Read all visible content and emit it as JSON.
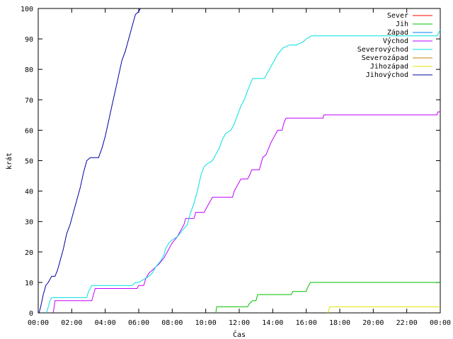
{
  "chart_data": {
    "type": "line",
    "xlabel": "Čas",
    "ylabel": "krát",
    "xlim": [
      0,
      24
    ],
    "ylim": [
      0,
      100
    ],
    "grid": false,
    "legend_position": "top-right",
    "x_ticks": [
      {
        "value": 0,
        "label": "00:00"
      },
      {
        "value": 2,
        "label": "02:00"
      },
      {
        "value": 4,
        "label": "04:00"
      },
      {
        "value": 6,
        "label": "06:00"
      },
      {
        "value": 8,
        "label": "08:00"
      },
      {
        "value": 10,
        "label": "10:00"
      },
      {
        "value": 12,
        "label": "12:00"
      },
      {
        "value": 14,
        "label": "14:00"
      },
      {
        "value": 16,
        "label": "16:00"
      },
      {
        "value": 18,
        "label": "18:00"
      },
      {
        "value": 20,
        "label": "20:00"
      },
      {
        "value": 22,
        "label": "22:00"
      },
      {
        "value": 24,
        "label": "00:00"
      }
    ],
    "y_ticks": [
      {
        "value": 0,
        "label": "0"
      },
      {
        "value": 10,
        "label": "10"
      },
      {
        "value": 20,
        "label": "20"
      },
      {
        "value": 30,
        "label": "30"
      },
      {
        "value": 40,
        "label": "40"
      },
      {
        "value": 50,
        "label": "50"
      },
      {
        "value": 60,
        "label": "60"
      },
      {
        "value": 70,
        "label": "70"
      },
      {
        "value": 80,
        "label": "80"
      },
      {
        "value": 90,
        "label": "90"
      },
      {
        "value": 100,
        "label": "100"
      }
    ],
    "series": [
      {
        "name": "Sever",
        "color": "#ff0000",
        "points": []
      },
      {
        "name": "Jih",
        "color": "#00c000",
        "points": [
          [
            10.6,
            0
          ],
          [
            10.65,
            2
          ],
          [
            12.5,
            2
          ],
          [
            12.6,
            3
          ],
          [
            12.8,
            4
          ],
          [
            13.0,
            4
          ],
          [
            13.1,
            6
          ],
          [
            15.1,
            6
          ],
          [
            15.2,
            7
          ],
          [
            16.0,
            7
          ],
          [
            16.05,
            8
          ],
          [
            16.15,
            9
          ],
          [
            16.25,
            10
          ],
          [
            24,
            10
          ]
        ]
      },
      {
        "name": "Západ",
        "color": "#0080ff",
        "points": []
      },
      {
        "name": "Východ",
        "color": "#c000ff",
        "points": [
          [
            0.9,
            0
          ],
          [
            1.0,
            4
          ],
          [
            3.2,
            4
          ],
          [
            3.4,
            8
          ],
          [
            5.9,
            8
          ],
          [
            6.0,
            9
          ],
          [
            6.3,
            9
          ],
          [
            6.4,
            11
          ],
          [
            6.6,
            13
          ],
          [
            6.8,
            14
          ],
          [
            7.0,
            15
          ],
          [
            7.2,
            16
          ],
          [
            7.35,
            17
          ],
          [
            7.5,
            18
          ],
          [
            7.8,
            21
          ],
          [
            8.0,
            23
          ],
          [
            8.15,
            24
          ],
          [
            8.3,
            25
          ],
          [
            8.5,
            27
          ],
          [
            8.7,
            29
          ],
          [
            8.8,
            31
          ],
          [
            9.3,
            31
          ],
          [
            9.4,
            33
          ],
          [
            9.9,
            33
          ],
          [
            10.0,
            34
          ],
          [
            10.1,
            35
          ],
          [
            10.3,
            37
          ],
          [
            10.4,
            38
          ],
          [
            11.6,
            38
          ],
          [
            11.7,
            40
          ],
          [
            11.9,
            42
          ],
          [
            12.1,
            44
          ],
          [
            12.5,
            44
          ],
          [
            12.6,
            45
          ],
          [
            12.75,
            47
          ],
          [
            13.2,
            47
          ],
          [
            13.3,
            49
          ],
          [
            13.4,
            51
          ],
          [
            13.6,
            52
          ],
          [
            13.75,
            54
          ],
          [
            13.9,
            56
          ],
          [
            14.0,
            57
          ],
          [
            14.2,
            59
          ],
          [
            14.3,
            60
          ],
          [
            14.55,
            60
          ],
          [
            14.7,
            63
          ],
          [
            14.8,
            64
          ],
          [
            17.0,
            64
          ],
          [
            17.05,
            65
          ],
          [
            23.8,
            65
          ],
          [
            23.85,
            66
          ],
          [
            24,
            66
          ]
        ]
      },
      {
        "name": "Severovýchod",
        "color": "#00e0e0",
        "points": [
          [
            0.5,
            0
          ],
          [
            0.7,
            4
          ],
          [
            0.8,
            5
          ],
          [
            2.9,
            5
          ],
          [
            3.0,
            7
          ],
          [
            3.1,
            8
          ],
          [
            3.2,
            9
          ],
          [
            5.6,
            9
          ],
          [
            5.8,
            10
          ],
          [
            6.0,
            10
          ],
          [
            6.3,
            11
          ],
          [
            6.6,
            12
          ],
          [
            6.8,
            13
          ],
          [
            7.0,
            15
          ],
          [
            7.3,
            17
          ],
          [
            7.5,
            19
          ],
          [
            7.6,
            21
          ],
          [
            7.8,
            23
          ],
          [
            8.0,
            24
          ],
          [
            8.3,
            25
          ],
          [
            8.6,
            27
          ],
          [
            8.9,
            29
          ],
          [
            9.1,
            33
          ],
          [
            9.3,
            36
          ],
          [
            9.5,
            40
          ],
          [
            9.7,
            45
          ],
          [
            9.9,
            48
          ],
          [
            10.1,
            49
          ],
          [
            10.4,
            50
          ],
          [
            10.6,
            52
          ],
          [
            10.8,
            54
          ],
          [
            11.0,
            57
          ],
          [
            11.2,
            59
          ],
          [
            11.5,
            60
          ],
          [
            11.7,
            62
          ],
          [
            11.9,
            65
          ],
          [
            12.1,
            68
          ],
          [
            12.3,
            70
          ],
          [
            12.5,
            73
          ],
          [
            12.8,
            77
          ],
          [
            13.5,
            77
          ],
          [
            13.7,
            79
          ],
          [
            13.9,
            81
          ],
          [
            14.1,
            83
          ],
          [
            14.3,
            85
          ],
          [
            14.6,
            87
          ],
          [
            15.0,
            88
          ],
          [
            15.4,
            88
          ],
          [
            15.8,
            89
          ],
          [
            16.0,
            90
          ],
          [
            16.3,
            91
          ],
          [
            23.8,
            91
          ],
          [
            24,
            93
          ]
        ]
      },
      {
        "name": "Severozápad",
        "color": "#c08000",
        "points": []
      },
      {
        "name": "Jihozápad",
        "color": "#e0e000",
        "points": [
          [
            17.3,
            0
          ],
          [
            17.4,
            2
          ],
          [
            24,
            2
          ]
        ]
      },
      {
        "name": "Jihovýchod",
        "color": "#0000a0",
        "points": [
          [
            0.05,
            0
          ],
          [
            0.15,
            2
          ],
          [
            0.3,
            6
          ],
          [
            0.45,
            9
          ],
          [
            0.6,
            10
          ],
          [
            0.8,
            12
          ],
          [
            1.0,
            12
          ],
          [
            1.15,
            14
          ],
          [
            1.3,
            17
          ],
          [
            1.5,
            21
          ],
          [
            1.7,
            26
          ],
          [
            1.9,
            29
          ],
          [
            2.1,
            33
          ],
          [
            2.3,
            37
          ],
          [
            2.5,
            41
          ],
          [
            2.7,
            46
          ],
          [
            2.9,
            50
          ],
          [
            3.1,
            51
          ],
          [
            3.6,
            51
          ],
          [
            3.8,
            54
          ],
          [
            4.0,
            58
          ],
          [
            4.2,
            63
          ],
          [
            4.4,
            68
          ],
          [
            4.6,
            73
          ],
          [
            4.8,
            78
          ],
          [
            5.0,
            83
          ],
          [
            5.2,
            86
          ],
          [
            5.4,
            90
          ],
          [
            5.6,
            94
          ],
          [
            5.8,
            98
          ],
          [
            6.0,
            99
          ],
          [
            6.1,
            100
          ]
        ]
      }
    ]
  }
}
